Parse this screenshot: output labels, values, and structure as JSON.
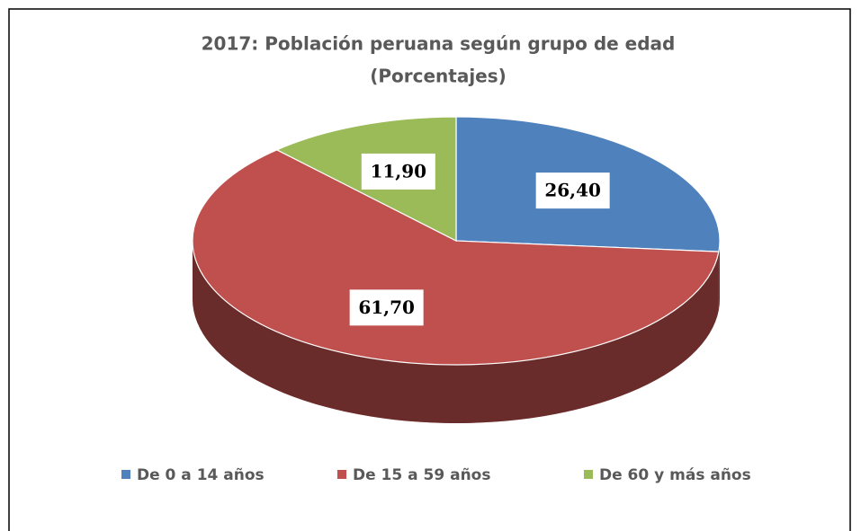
{
  "chart_data": {
    "type": "pie",
    "title": "2017: Población peruana según grupo de edad",
    "subtitle": "(Porcentajes)",
    "categories": [
      "De 0 a 14 años",
      "De 15 a 59 años",
      "De 60 y más años"
    ],
    "values": [
      26.4,
      61.7,
      11.9
    ],
    "value_labels": [
      "26,40",
      "61,70",
      "11,90"
    ],
    "colors": [
      "#4f81bd",
      "#c0504d",
      "#9bbb59"
    ],
    "legend": "bottom"
  }
}
